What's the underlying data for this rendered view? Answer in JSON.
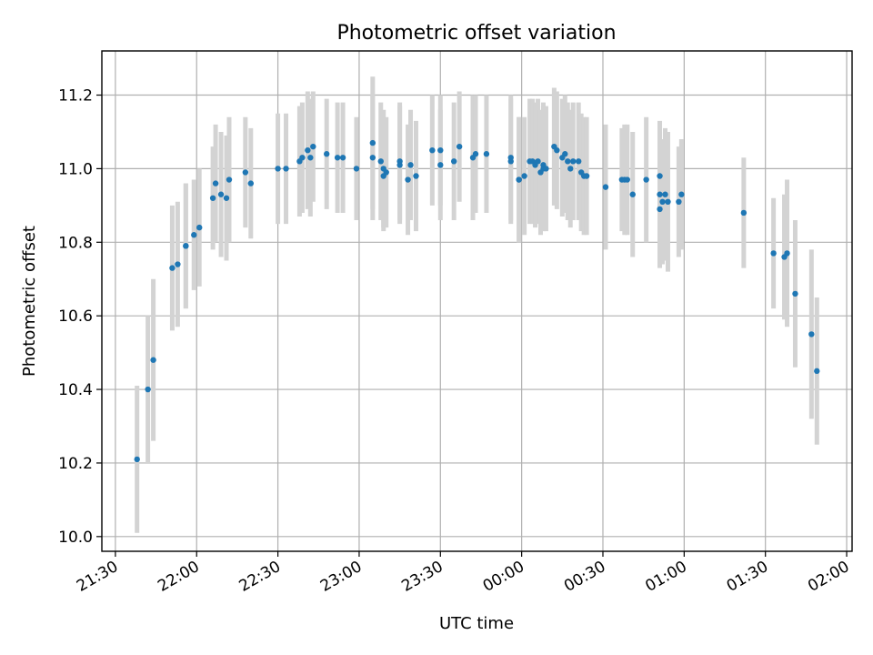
{
  "chart_data": {
    "type": "scatter",
    "title": "Photometric offset variation",
    "xlabel": "UTC time",
    "ylabel": "Photometric offset",
    "x_unit": "UTC",
    "xlim": [
      "21:25",
      "02:02"
    ],
    "ylim": [
      9.96,
      11.32
    ],
    "x_ticks": [
      "21:30",
      "22:00",
      "22:30",
      "23:00",
      "23:30",
      "00:00",
      "00:30",
      "01:00",
      "01:30",
      "02:00"
    ],
    "y_ticks": [
      10.0,
      10.2,
      10.4,
      10.6,
      10.8,
      11.0,
      11.2
    ],
    "grid": true,
    "colors": {
      "points": "#1f77b4",
      "error_bars": "#d3d3d3"
    },
    "series": [
      {
        "x": [
          "21:38",
          "21:42",
          "21:44",
          "21:51",
          "21:53",
          "21:56",
          "21:56",
          "21:59",
          "22:01",
          "22:06",
          "22:07",
          "22:09",
          "22:11",
          "22:12",
          "22:18",
          "22:20",
          "22:30",
          "22:33",
          "22:38",
          "22:39",
          "22:41",
          "22:42",
          "22:43",
          "22:48",
          "22:52",
          "22:54",
          "22:59",
          "23:05",
          "23:05",
          "23:08",
          "23:09",
          "23:09",
          "23:10",
          "23:15",
          "23:15",
          "23:18",
          "23:19",
          "23:21",
          "23:27",
          "23:30",
          "23:30",
          "23:35",
          "23:37",
          "23:42",
          "23:43",
          "23:47",
          "23:56",
          "23:56",
          "23:59",
          "23:59",
          "00:01",
          "00:03",
          "00:04",
          "00:05",
          "00:06",
          "00:07",
          "00:08",
          "00:08",
          "00:09",
          "00:12",
          "00:13",
          "00:15",
          "00:16",
          "00:17",
          "00:18",
          "00:19",
          "00:21",
          "00:22",
          "00:23",
          "00:24",
          "00:31",
          "00:37",
          "00:38",
          "00:39",
          "00:41",
          "00:46",
          "00:51",
          "00:51",
          "00:51",
          "00:52",
          "00:53",
          "00:54",
          "00:58",
          "00:59",
          "01:22",
          "01:33",
          "01:37",
          "01:38",
          "01:41",
          "01:47",
          "01:49"
        ],
        "y": [
          10.21,
          10.4,
          10.48,
          10.73,
          10.74,
          10.79,
          10.79,
          10.82,
          10.84,
          10.92,
          10.96,
          10.93,
          10.92,
          10.97,
          10.99,
          10.96,
          11.0,
          11.0,
          11.02,
          11.03,
          11.05,
          11.03,
          11.06,
          11.04,
          11.03,
          11.03,
          11.0,
          11.07,
          11.03,
          11.02,
          11.0,
          10.98,
          10.99,
          11.02,
          11.01,
          10.97,
          11.01,
          10.98,
          11.05,
          11.05,
          11.01,
          11.02,
          11.06,
          11.03,
          11.04,
          11.04,
          11.03,
          11.02,
          10.97,
          10.97,
          10.98,
          11.02,
          11.02,
          11.01,
          11.02,
          10.99,
          11.01,
          11.0,
          11.0,
          11.06,
          11.05,
          11.03,
          11.04,
          11.02,
          11.0,
          11.02,
          11.02,
          10.99,
          10.98,
          10.98,
          10.95,
          10.97,
          10.97,
          10.97,
          10.93,
          10.97,
          10.98,
          10.93,
          10.89,
          10.91,
          10.93,
          10.91,
          10.91,
          10.93,
          10.88,
          10.77,
          10.76,
          10.77,
          10.66,
          10.55,
          10.45
        ],
        "y_err": [
          0.2,
          0.2,
          0.22,
          0.17,
          0.17,
          0.17,
          0.17,
          0.15,
          0.16,
          0.14,
          0.16,
          0.17,
          0.17,
          0.17,
          0.15,
          0.15,
          0.15,
          0.15,
          0.15,
          0.15,
          0.16,
          0.16,
          0.15,
          0.15,
          0.15,
          0.15,
          0.14,
          0.18,
          0.17,
          0.16,
          0.16,
          0.15,
          0.15,
          0.16,
          0.16,
          0.15,
          0.15,
          0.15,
          0.15,
          0.15,
          0.15,
          0.16,
          0.15,
          0.17,
          0.16,
          0.16,
          0.17,
          0.17,
          0.17,
          0.17,
          0.16,
          0.17,
          0.17,
          0.17,
          0.17,
          0.17,
          0.17,
          0.17,
          0.17,
          0.16,
          0.16,
          0.16,
          0.16,
          0.16,
          0.16,
          0.16,
          0.16,
          0.16,
          0.16,
          0.16,
          0.17,
          0.14,
          0.15,
          0.15,
          0.17,
          0.17,
          0.15,
          0.17,
          0.16,
          0.17,
          0.18,
          0.19,
          0.15,
          0.15,
          0.15,
          0.15,
          0.17,
          0.2,
          0.2,
          0.23,
          0.2
        ]
      }
    ]
  }
}
